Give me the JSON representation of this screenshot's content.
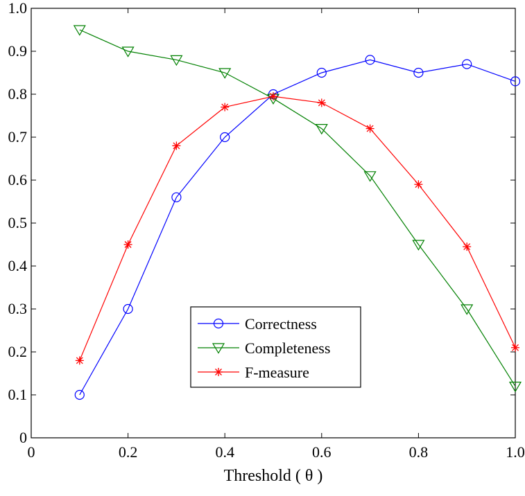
{
  "chart_data": {
    "type": "line",
    "title": "",
    "xlabel": "Threshold ( θ )",
    "ylabel": "",
    "xlim": [
      0,
      1.0
    ],
    "ylim": [
      0,
      1.0
    ],
    "x_ticks": [
      0,
      0.2,
      0.4,
      0.6,
      0.8,
      1.0
    ],
    "x_tick_labels": [
      "0",
      "0.2",
      "0.4",
      "0.6",
      "0.8",
      "1.0"
    ],
    "y_ticks": [
      0,
      0.1,
      0.2,
      0.3,
      0.4,
      0.5,
      0.6,
      0.7,
      0.8,
      0.9,
      1.0
    ],
    "y_tick_labels": [
      "0",
      "0.1",
      "0.2",
      "0.3",
      "0.4",
      "0.5",
      "0.6",
      "0.7",
      "0.8",
      "0.9",
      "1.0"
    ],
    "grid": false,
    "legend_position": "bottom-center",
    "x": [
      0.1,
      0.2,
      0.3,
      0.4,
      0.5,
      0.6,
      0.7,
      0.8,
      0.9,
      1.0
    ],
    "series": [
      {
        "name": "Correctness",
        "color": "#0000ff",
        "marker": "circle",
        "values": [
          0.1,
          0.3,
          0.56,
          0.7,
          0.8,
          0.85,
          0.88,
          0.85,
          0.87,
          0.83
        ]
      },
      {
        "name": "Completeness",
        "color": "#008000",
        "marker": "triangle-down",
        "values": [
          0.95,
          0.9,
          0.88,
          0.85,
          0.79,
          0.72,
          0.61,
          0.45,
          0.3,
          0.12
        ]
      },
      {
        "name": "F-measure",
        "color": "#ff0000",
        "marker": "star",
        "values": [
          0.18,
          0.45,
          0.68,
          0.77,
          0.795,
          0.78,
          0.72,
          0.59,
          0.445,
          0.21
        ]
      }
    ]
  }
}
